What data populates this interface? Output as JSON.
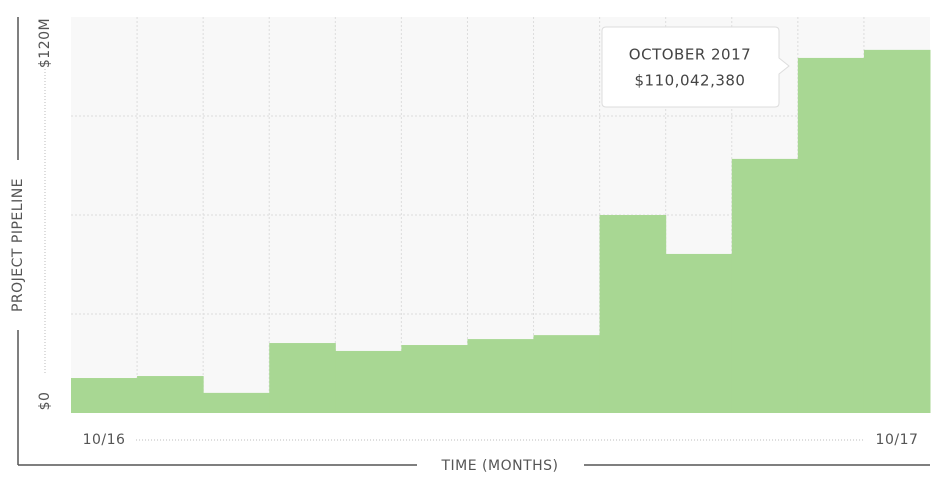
{
  "chart_data": {
    "type": "bar",
    "ylabel": "PROJECT PIPELINE",
    "xlabel": "TIME (MONTHS)",
    "categories": [
      "10/16",
      null,
      null,
      null,
      null,
      null,
      null,
      null,
      null,
      null,
      null,
      null,
      "10/17"
    ],
    "values": [
      10600000,
      11200000,
      6100000,
      21200000,
      18800000,
      20600000,
      22400000,
      23600000,
      60000000,
      48200000,
      77000000,
      107600000,
      110042380
    ],
    "value_labels": [
      null,
      null,
      null,
      null,
      null,
      null,
      null,
      null,
      null,
      null,
      null,
      null,
      "$110,042,380"
    ],
    "tooltip_title": "OCTOBER 2017",
    "color": "#a8d793",
    "ylim": [
      0,
      120000000
    ],
    "yticks": [
      {
        "value": 0,
        "label": "$0"
      },
      {
        "value": 120000000,
        "label": "$120M"
      }
    ],
    "ygrid": [
      30000000,
      60000000,
      90000000
    ],
    "grid": true
  }
}
